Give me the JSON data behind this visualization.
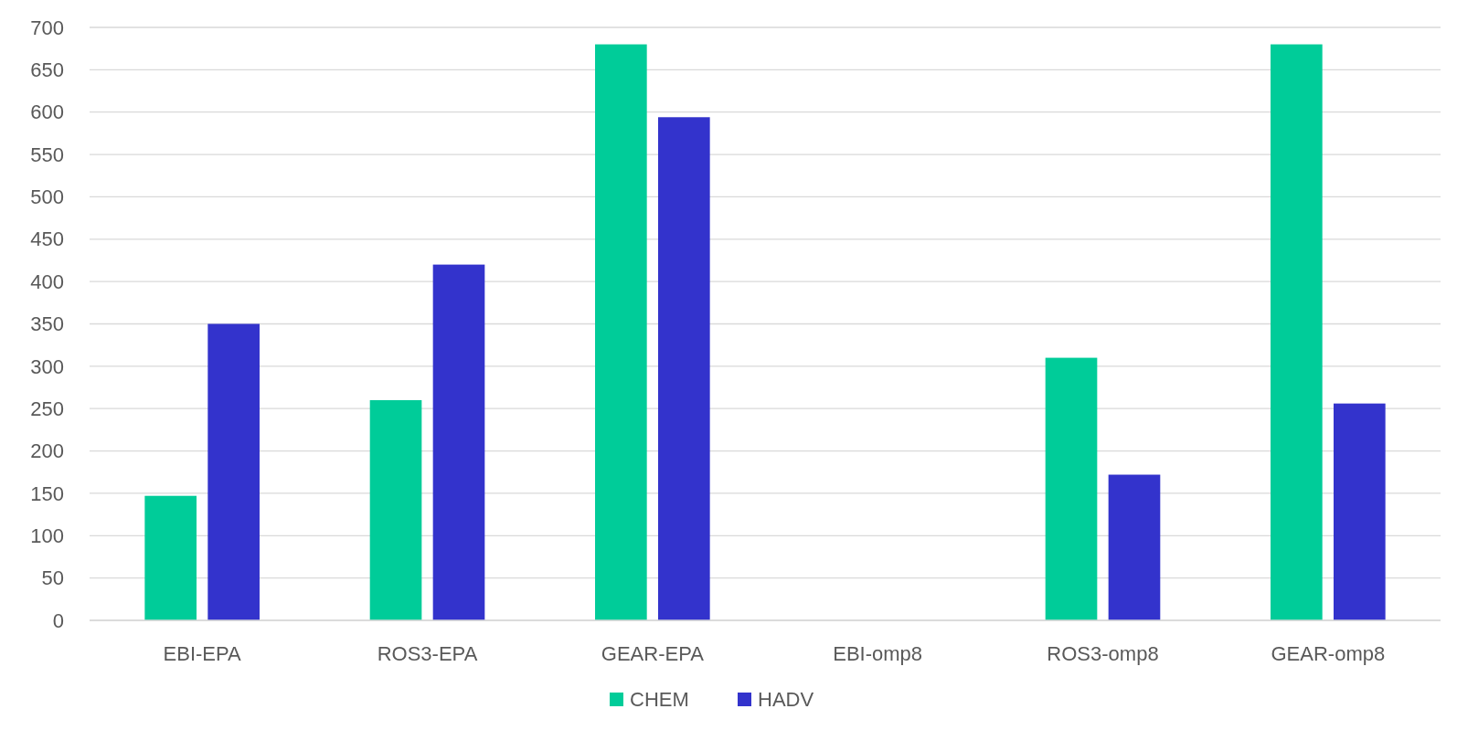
{
  "chart_data": {
    "type": "bar",
    "categories": [
      "EBI-EPA",
      "ROS3-EPA",
      "GEAR-EPA",
      "EBI-omp8",
      "ROS3-omp8",
      "GEAR-omp8"
    ],
    "series": [
      {
        "name": "CHEM",
        "color": "#00cc99",
        "values": [
          147,
          260,
          680,
          null,
          310,
          680
        ]
      },
      {
        "name": "HADV",
        "color": "#3333cc",
        "values": [
          350,
          420,
          594,
          null,
          172,
          256
        ]
      }
    ],
    "ylim": [
      0,
      700
    ],
    "yticks": [
      0,
      50,
      100,
      150,
      200,
      250,
      300,
      350,
      400,
      450,
      500,
      550,
      600,
      650,
      700
    ],
    "grid": "y",
    "legend": "bottom"
  }
}
